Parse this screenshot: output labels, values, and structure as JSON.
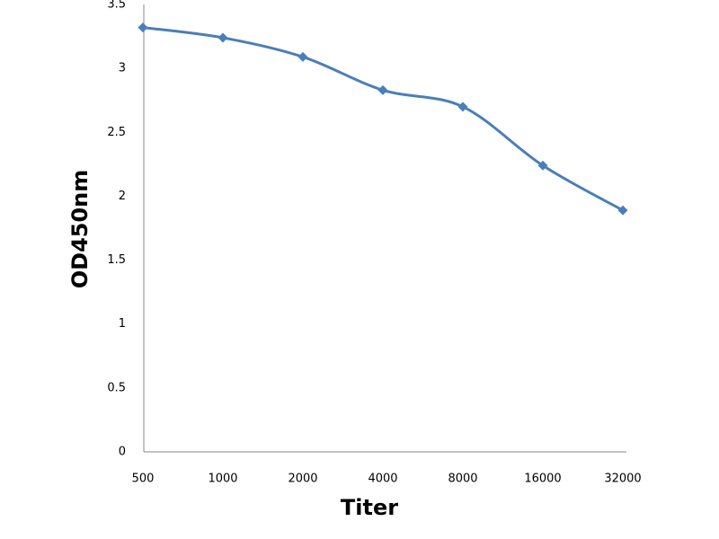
{
  "chart_data": {
    "type": "line",
    "x_label": "Titer",
    "y_label": "OD450nm",
    "categories": [
      "500",
      "1000",
      "2000",
      "4000",
      "8000",
      "16000",
      "32000"
    ],
    "series": [
      {
        "name": "OD450nm",
        "color": "#4a7ebb",
        "values": [
          3.32,
          3.24,
          3.09,
          2.83,
          2.7,
          2.24,
          1.89
        ]
      }
    ],
    "ylim": [
      0,
      3.5
    ],
    "yticks": [
      0,
      0.5,
      1,
      1.5,
      2,
      2.5,
      3,
      3.5
    ],
    "grid": false,
    "legend": false
  }
}
